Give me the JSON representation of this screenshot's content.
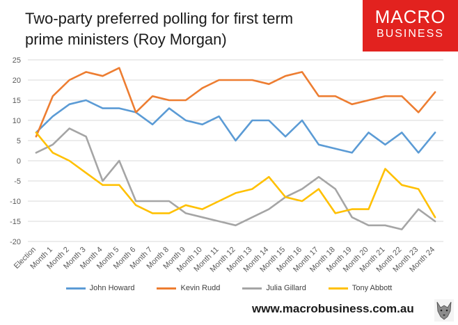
{
  "title": "Two-party preferred polling for first term prime ministers (Roy Morgan)",
  "logo": {
    "line1": "MACRO",
    "line2": "BUSINESS",
    "color": "#e2221f"
  },
  "footer": {
    "url": "www.macrobusiness.com.au"
  },
  "chart_data": {
    "type": "line",
    "title": "Two-party preferred polling for first term prime ministers (Roy Morgan)",
    "categories": [
      "Election",
      "Month 1",
      "Month 2",
      "Month 3",
      "Month 4",
      "Month 5",
      "Month 6",
      "Month 7",
      "Month 8",
      "Month 9",
      "Month 10",
      "Month 11",
      "Month 12",
      "Month 13",
      "Month 14",
      "Month 15",
      "Month 16",
      "Month 17",
      "Month 18",
      "Month 19",
      "Month 20",
      "Month 21",
      "Month 22",
      "Month 23",
      "Month 24"
    ],
    "ylim": [
      -20,
      25
    ],
    "yticks": [
      -20,
      -15,
      -10,
      -5,
      0,
      5,
      10,
      15,
      20,
      25
    ],
    "grid": true,
    "legend": "bottom",
    "series": [
      {
        "name": "John Howard",
        "color": "#5b9bd5",
        "values": [
          7,
          11,
          14,
          15,
          13,
          13,
          12,
          9,
          13,
          10,
          9,
          11,
          5,
          10,
          10,
          6,
          10,
          4,
          3,
          2,
          7,
          4,
          7,
          2,
          7
        ]
      },
      {
        "name": "Kevin Rudd",
        "color": "#ed7d31",
        "values": [
          6,
          16,
          20,
          22,
          21,
          23,
          12,
          16,
          15,
          15,
          18,
          20,
          20,
          20,
          19,
          21,
          22,
          16,
          16,
          14,
          15,
          16,
          16,
          12,
          17
        ]
      },
      {
        "name": "Julia Gillard",
        "color": "#a5a5a5",
        "values": [
          2,
          4,
          8,
          6,
          -5,
          0,
          -10,
          -10,
          -10,
          -13,
          -14,
          -15,
          -16,
          -14,
          -12,
          -9,
          -7,
          -4,
          -7,
          -14,
          -16,
          -16,
          -17,
          -12,
          -15
        ]
      },
      {
        "name": "Tony Abbott",
        "color": "#ffc000",
        "values": [
          7,
          2,
          0,
          -3,
          -6,
          -6,
          -11,
          -13,
          -13,
          -11,
          -12,
          -10,
          -8,
          -7,
          -4,
          -9,
          -10,
          -7,
          -13,
          -12,
          -12,
          -2,
          -6,
          -7,
          -14
        ]
      }
    ]
  }
}
